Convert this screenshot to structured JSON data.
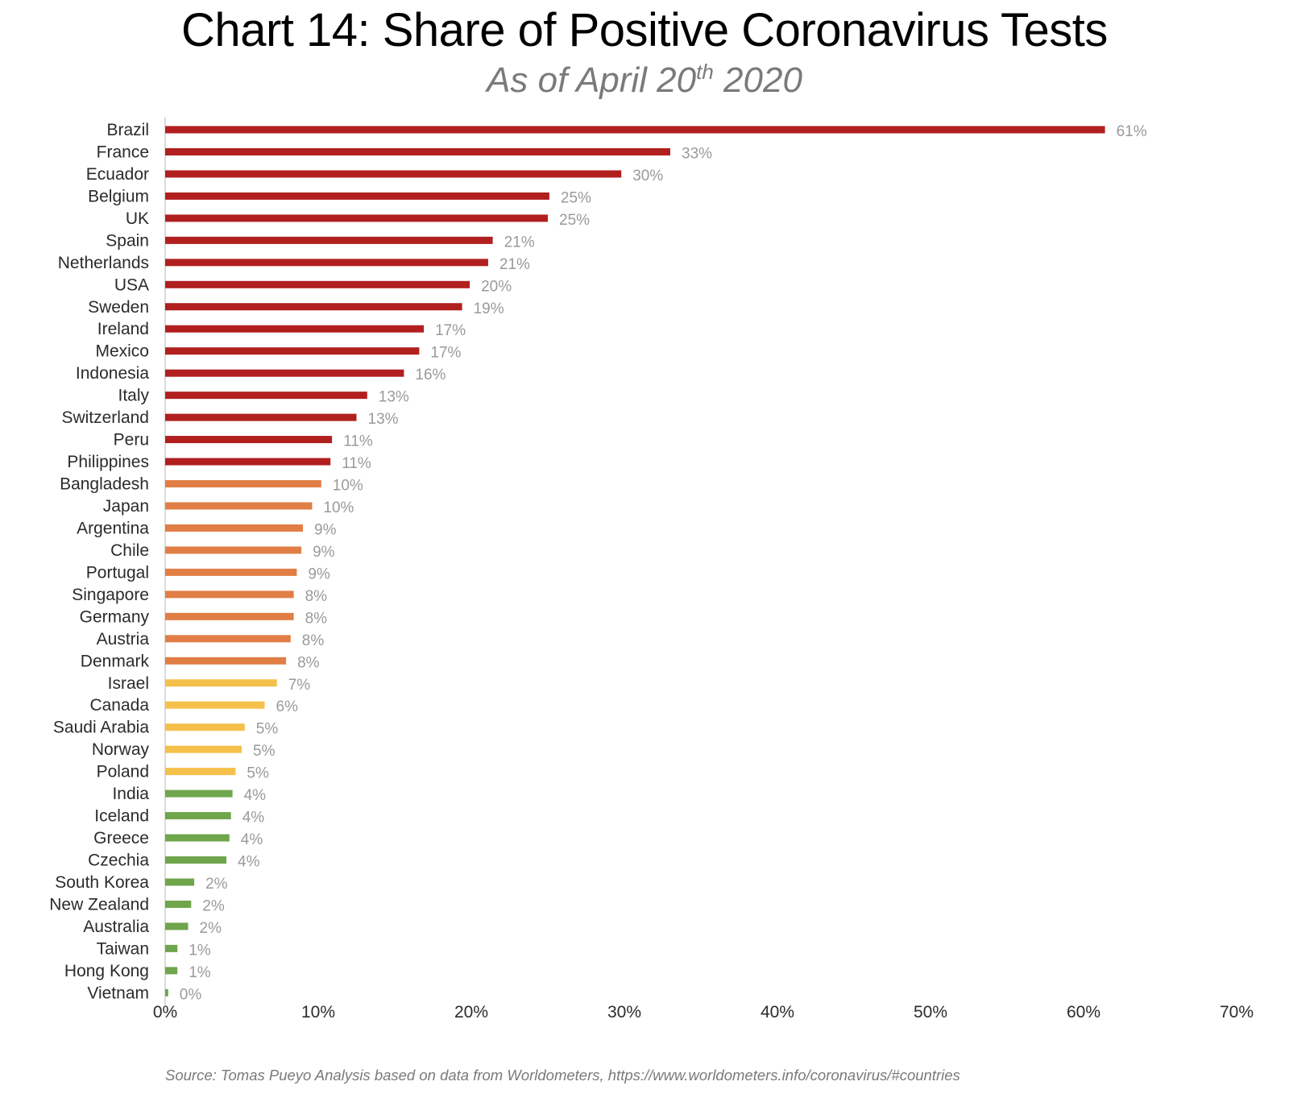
{
  "title": "Chart 14: Share of Positive Coronavirus Tests",
  "subtitle": {
    "prefix": "As of April 20",
    "superscript": "th",
    "suffix": " 2020"
  },
  "source": "Source: Tomas Pueyo Analysis based on data from Worldometers, https://www.worldometers.info/coronavirus/#countries",
  "colors": {
    "red": "#b11f1f",
    "orange": "#e07e45",
    "yellow": "#f5c04a",
    "green": "#6fa54b",
    "label": "#2b2b2b",
    "value_label": "#9a9a9a",
    "axis": "#d0d0d0"
  },
  "chart_data": {
    "type": "bar",
    "orientation": "horizontal",
    "xlim": [
      0,
      0.7
    ],
    "x_ticks": [
      "0%",
      "10%",
      "20%",
      "30%",
      "40%",
      "50%",
      "60%",
      "70%"
    ],
    "grid": false,
    "categories": [
      "Brazil",
      "France",
      "Ecuador",
      "Belgium",
      "UK",
      "Spain",
      "Netherlands",
      "USA",
      "Sweden",
      "Ireland",
      "Mexico",
      "Indonesia",
      "Italy",
      "Switzerland",
      "Peru",
      "Philippines",
      "Bangladesh",
      "Japan",
      "Argentina",
      "Chile",
      "Portugal",
      "Singapore",
      "Germany",
      "Austria",
      "Denmark",
      "Israel",
      "Canada",
      "Saudi Arabia",
      "Norway",
      "Poland",
      "India",
      "Iceland",
      "Greece",
      "Czechia",
      "South Korea",
      "New Zealand",
      "Australia",
      "Taiwan",
      "Hong Kong",
      "Vietnam"
    ],
    "values": [
      0.614,
      0.33,
      0.298,
      0.251,
      0.25,
      0.214,
      0.211,
      0.199,
      0.194,
      0.169,
      0.166,
      0.156,
      0.132,
      0.125,
      0.109,
      0.108,
      0.102,
      0.096,
      0.09,
      0.089,
      0.086,
      0.084,
      0.084,
      0.082,
      0.079,
      0.073,
      0.065,
      0.052,
      0.05,
      0.046,
      0.044,
      0.043,
      0.042,
      0.04,
      0.019,
      0.017,
      0.015,
      0.008,
      0.008,
      0.002
    ],
    "value_labels": [
      "61%",
      "33%",
      "30%",
      "25%",
      "25%",
      "21%",
      "21%",
      "20%",
      "19%",
      "17%",
      "17%",
      "16%",
      "13%",
      "13%",
      "11%",
      "11%",
      "10%",
      "10%",
      "9%",
      "9%",
      "9%",
      "8%",
      "8%",
      "8%",
      "8%",
      "7%",
      "6%",
      "5%",
      "5%",
      "5%",
      "4%",
      "4%",
      "4%",
      "4%",
      "2%",
      "2%",
      "2%",
      "1%",
      "1%",
      "0%"
    ],
    "bar_colors": [
      "red",
      "red",
      "red",
      "red",
      "red",
      "red",
      "red",
      "red",
      "red",
      "red",
      "red",
      "red",
      "red",
      "red",
      "red",
      "red",
      "orange",
      "orange",
      "orange",
      "orange",
      "orange",
      "orange",
      "orange",
      "orange",
      "orange",
      "yellow",
      "yellow",
      "yellow",
      "yellow",
      "yellow",
      "green",
      "green",
      "green",
      "green",
      "green",
      "green",
      "green",
      "green",
      "green",
      "green"
    ]
  }
}
